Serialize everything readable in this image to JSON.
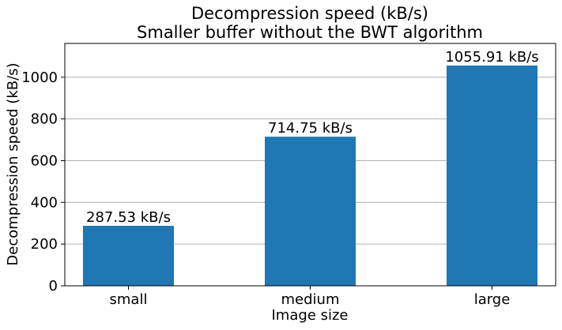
{
  "chart_data": {
    "type": "bar",
    "title": "Decompression speed (kB/s)",
    "subtitle": "Smaller buffer without the BWT algorithm",
    "xlabel": "Image size",
    "ylabel": "Decompression speed (kB/s)",
    "categories": [
      "small",
      "medium",
      "large"
    ],
    "values": [
      287.53,
      714.75,
      1055.91
    ],
    "data_labels": [
      "287.53 kB/s",
      "714.75 kB/s",
      "1055.91 kB/s"
    ],
    "ylim": [
      0,
      1162
    ],
    "yticks": [
      0,
      200,
      400,
      600,
      800,
      1000
    ],
    "grid": "y",
    "bar_color": "#1f77b4",
    "grid_color": "#b0b0b0"
  }
}
